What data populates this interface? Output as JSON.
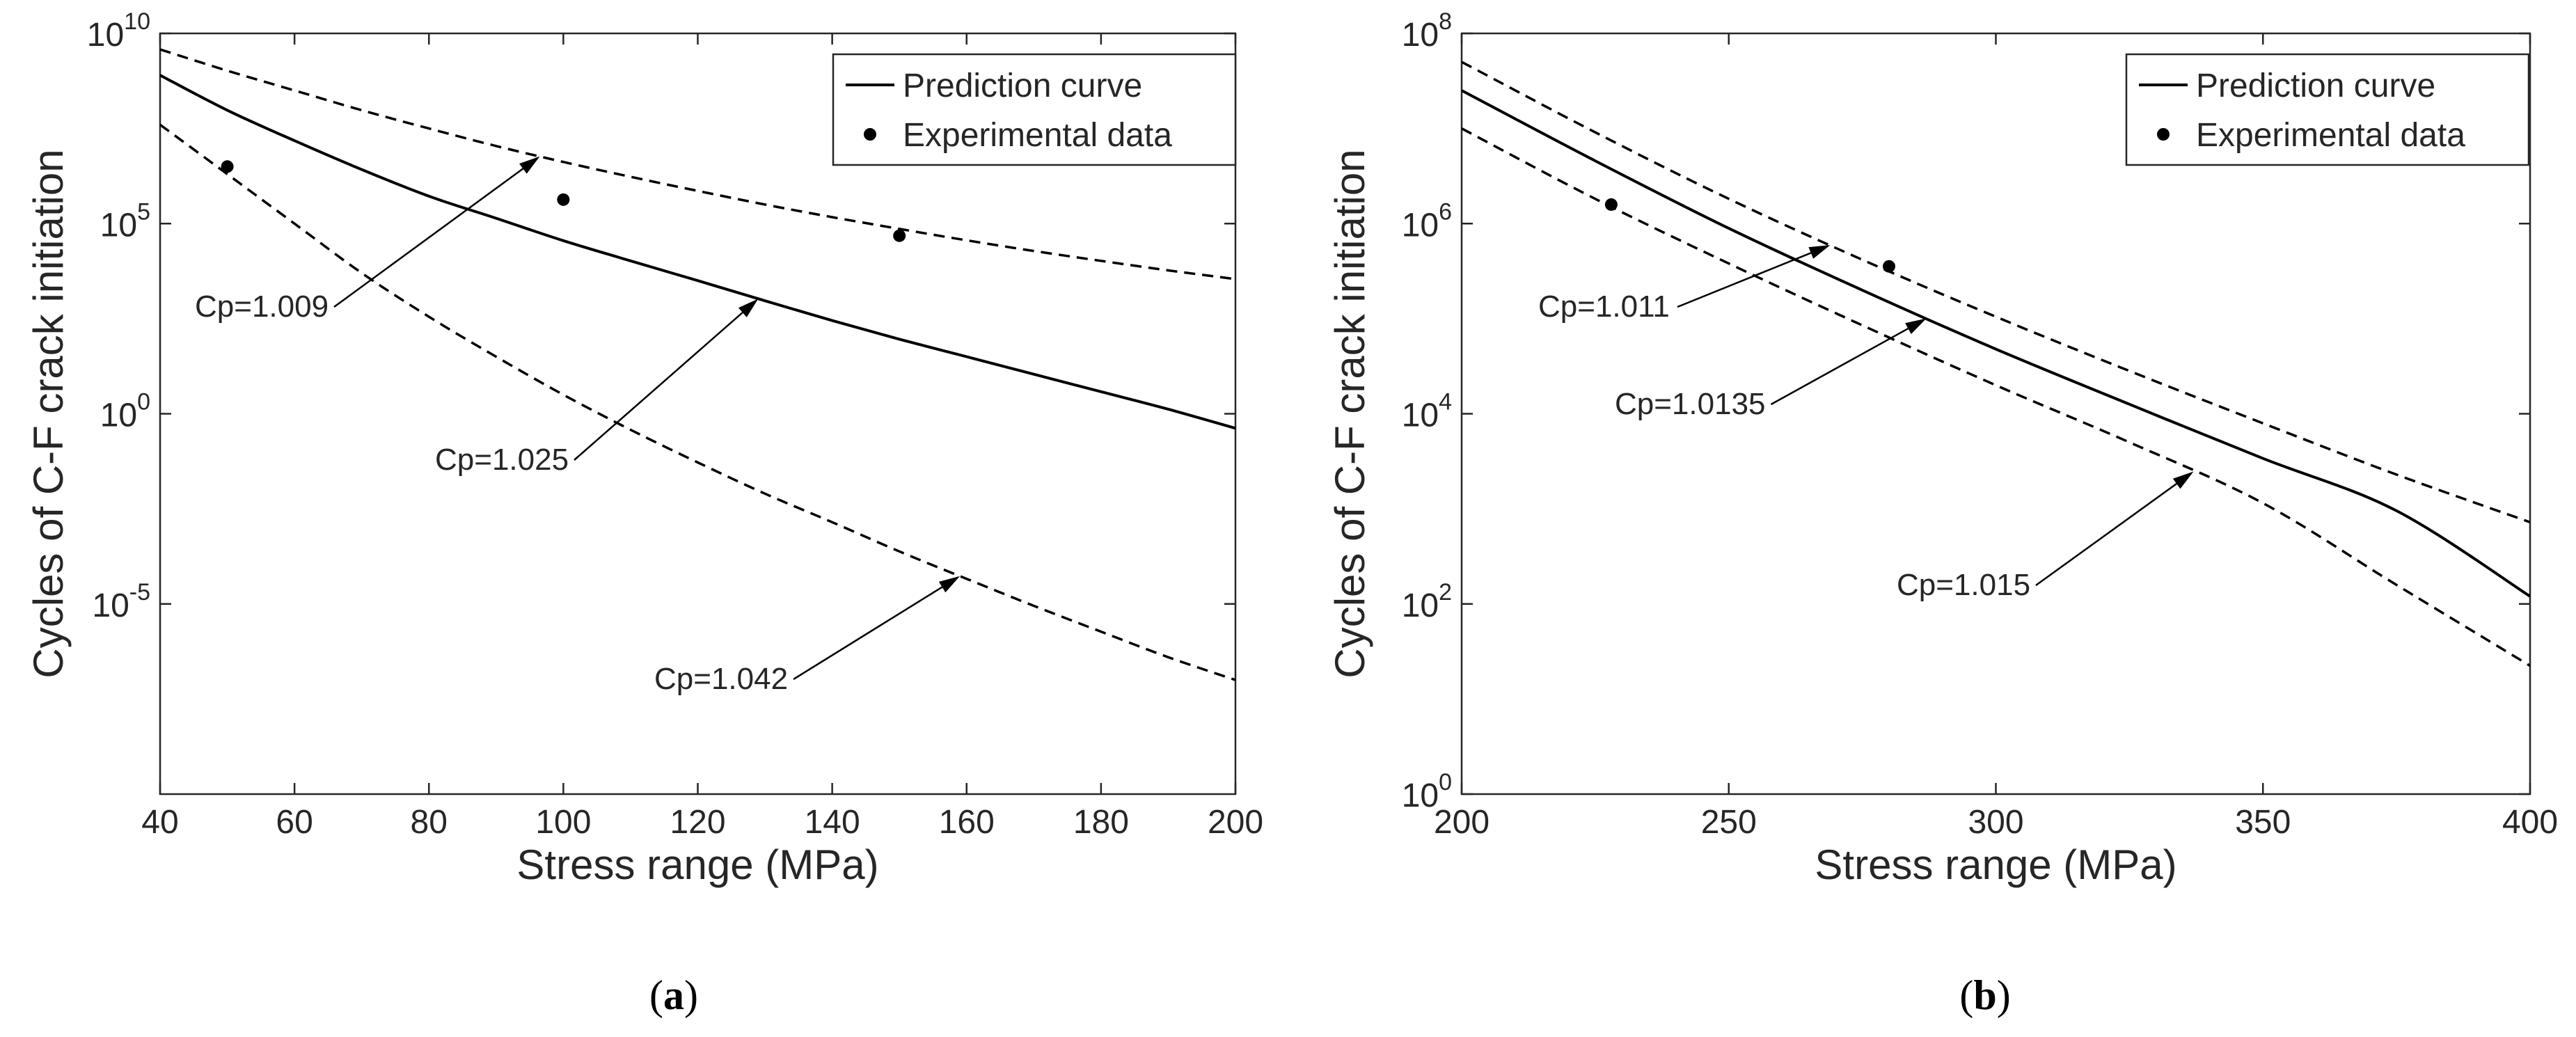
{
  "chart_data": [
    {
      "panel": "a",
      "type": "line",
      "sublabel": "a",
      "title": "",
      "xlabel": "Stress range (MPa)",
      "ylabel": "Cycles of C-F crack initiation",
      "x_scale": "linear",
      "y_scale": "log",
      "xlim": [
        40,
        200
      ],
      "ylim_log10": [
        -10,
        10
      ],
      "x_ticks": [
        40,
        60,
        80,
        100,
        120,
        140,
        160,
        180,
        200
      ],
      "x_tick_labels": [
        "40",
        "60",
        "80",
        "100",
        "120",
        "140",
        "160",
        "180",
        "200"
      ],
      "y_ticks": [
        {
          "log10": 10,
          "base": "10",
          "exp": "10"
        },
        {
          "log10": 5,
          "base": "10",
          "exp": "5"
        },
        {
          "log10": 0,
          "base": "10",
          "exp": "0"
        },
        {
          "log10": -5,
          "base": "10",
          "exp": "-5"
        }
      ],
      "legend": {
        "location": "top-right",
        "entries": [
          "Prediction curve",
          "Experimental data"
        ]
      },
      "series": [
        {
          "name": "Prediction curve",
          "style": "solid",
          "x": [
            40,
            50,
            60,
            70,
            80,
            90,
            100,
            110,
            120,
            130,
            140,
            150,
            160,
            170,
            180,
            190,
            200
          ],
          "y_log10": [
            8.9,
            7.98,
            7.18,
            6.42,
            5.72,
            5.14,
            4.55,
            4.02,
            3.5,
            2.97,
            2.45,
            1.96,
            1.5,
            1.04,
            0.58,
            0.12,
            -0.38
          ]
        },
        {
          "name": "Cp=1.009",
          "style": "dashed",
          "x": [
            40,
            50,
            60,
            70,
            80,
            90,
            100,
            110,
            120,
            130,
            140,
            150,
            160,
            170,
            180,
            190,
            200
          ],
          "y_log10": [
            9.58,
            9.02,
            8.5,
            7.98,
            7.5,
            7.04,
            6.62,
            6.23,
            5.86,
            5.5,
            5.17,
            4.86,
            4.56,
            4.28,
            4.02,
            3.77,
            3.54
          ]
        },
        {
          "name": "Cp=1.042",
          "style": "dashed",
          "x": [
            40,
            50,
            60,
            70,
            80,
            90,
            100,
            110,
            120,
            130,
            140,
            150,
            160,
            170,
            180,
            190,
            200
          ],
          "y_log10": [
            7.6,
            6.3,
            5.0,
            3.7,
            2.55,
            1.5,
            0.5,
            -0.42,
            -1.28,
            -2.1,
            -2.85,
            -3.62,
            -4.34,
            -5.05,
            -5.73,
            -6.4,
            -7.0
          ]
        }
      ],
      "experimental_data": {
        "name": "Experimental data",
        "x": [
          50,
          100,
          150
        ],
        "y_log10": [
          6.5,
          5.63,
          4.68
        ]
      },
      "annotations": [
        {
          "text": "Cp=1.009",
          "target_series": "Cp=1.009",
          "target_x": 96.5
        },
        {
          "text": "Cp=1.025",
          "target_series": "Prediction curve",
          "target_x": 129
        },
        {
          "text": "Cp=1.042",
          "target_series": "Cp=1.042",
          "target_x": 159
        }
      ]
    },
    {
      "panel": "b",
      "type": "line",
      "sublabel": "b",
      "title": "",
      "xlabel": "Stress range (MPa)",
      "ylabel": "Cycles of C-F crack initiation",
      "x_scale": "linear",
      "y_scale": "log",
      "xlim": [
        200,
        400
      ],
      "ylim_log10": [
        0,
        8
      ],
      "x_ticks": [
        200,
        250,
        300,
        350,
        400
      ],
      "x_tick_labels": [
        "200",
        "250",
        "300",
        "350",
        "400"
      ],
      "y_ticks": [
        {
          "log10": 8,
          "base": "10",
          "exp": "8"
        },
        {
          "log10": 6,
          "base": "10",
          "exp": "6"
        },
        {
          "log10": 4,
          "base": "10",
          "exp": "4"
        },
        {
          "log10": 2,
          "base": "10",
          "exp": "2"
        },
        {
          "log10": 0,
          "base": "10",
          "exp": "0"
        }
      ],
      "legend": {
        "location": "top-right",
        "entries": [
          "Prediction curve",
          "Experimental data"
        ]
      },
      "series": [
        {
          "name": "Prediction curve",
          "style": "solid",
          "x": [
            200,
            225,
            250,
            275,
            300,
            325,
            350,
            375,
            400
          ],
          "y_log10": [
            7.4,
            6.66,
            5.95,
            5.3,
            4.68,
            4.1,
            3.53,
            2.98,
            2.08
          ]
        },
        {
          "name": "Cp=1.011",
          "style": "dashed",
          "x": [
            200,
            225,
            250,
            275,
            300,
            325,
            350,
            375,
            400
          ],
          "y_log10": [
            7.7,
            6.96,
            6.26,
            5.62,
            5.02,
            4.45,
            3.9,
            3.36,
            2.86
          ]
        },
        {
          "name": "Cp=1.015",
          "style": "dashed",
          "x": [
            200,
            225,
            250,
            275,
            300,
            325,
            350,
            375,
            400
          ],
          "y_log10": [
            7.0,
            6.26,
            5.58,
            4.93,
            4.3,
            3.7,
            3.06,
            2.2,
            1.35
          ]
        }
      ],
      "experimental_data": {
        "name": "Experimental data",
        "x": [
          228,
          280
        ],
        "y_log10": [
          6.2,
          5.55
        ]
      },
      "annotations": [
        {
          "text": "Cp=1.011",
          "target_series": "Cp=1.011",
          "target_x": 269
        },
        {
          "text": "Cp=1.0135",
          "target_series": "Prediction curve",
          "target_x": 287
        },
        {
          "text": "Cp=1.015",
          "target_series": "Cp=1.015",
          "target_x": 337
        }
      ]
    }
  ]
}
